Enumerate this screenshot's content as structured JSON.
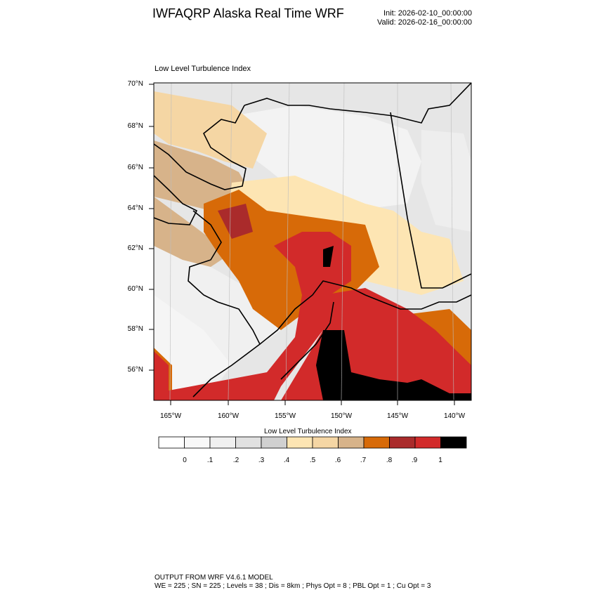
{
  "title": "IWFAQRP Alaska Real Time WRF",
  "init": "Init: 2026-02-10_00:00:00",
  "valid": "Valid: 2026-02-16_00:00:00",
  "map_title": "Low Level Turbulence Index",
  "lat_labels": [
    "70°N",
    "68°N",
    "66°N",
    "64°N",
    "62°N",
    "60°N",
    "58°N",
    "56°N"
  ],
  "lon_labels": [
    "165°W",
    "160°W",
    "155°W",
    "150°W",
    "145°W",
    "140°W"
  ],
  "legend": {
    "title": "Low Level Turbulence Index",
    "colors": [
      "#ffffff",
      "#f8f8f8",
      "#f0f0f0",
      "#e1e1e1",
      "#d0d0d0",
      "#fde5b3",
      "#f5d6a4",
      "#d7b38a",
      "#d76a08",
      "#aa2b2b",
      "#d22a2a",
      "#000000"
    ],
    "labels": [
      "0",
      ".1",
      ".2",
      ".3",
      ".4",
      ".5",
      ".6",
      ".7",
      ".8",
      ".9",
      "1"
    ]
  },
  "footer": {
    "line1": "OUTPUT FROM WRF V4.6.1 MODEL",
    "line2": "WE = 225 ; SN = 225 ; Levels = 38 ; Dis = 8km ; Phys Opt = 8 ; PBL Opt = 1 ; Cu Opt = 3"
  }
}
